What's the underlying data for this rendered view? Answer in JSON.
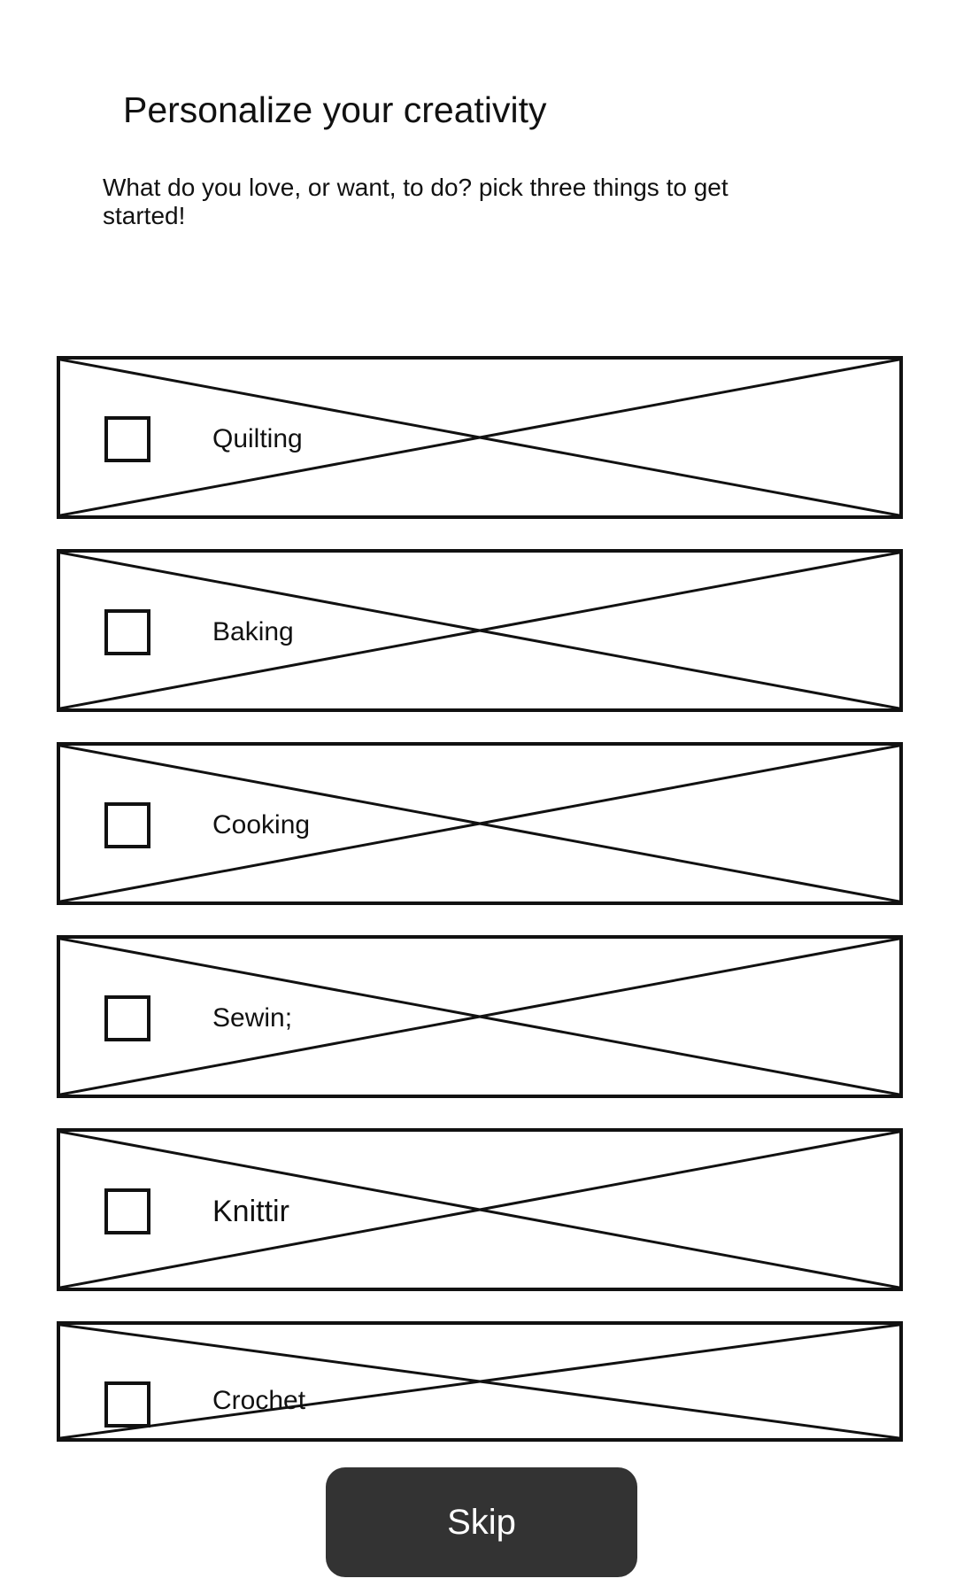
{
  "header": {
    "title": "Personalize your creativity",
    "subtitle": "What do you love, or want, to do? pick three things to get started!"
  },
  "options": [
    {
      "label": "Quilting",
      "checked": false
    },
    {
      "label": "Baking",
      "checked": false
    },
    {
      "label": "Cooking",
      "checked": false
    },
    {
      "label": "Sewin;",
      "checked": false
    },
    {
      "label": "Knittir",
      "checked": false
    },
    {
      "label": "Crochet",
      "checked": false
    }
  ],
  "footer": {
    "skip_label": "Skip"
  }
}
